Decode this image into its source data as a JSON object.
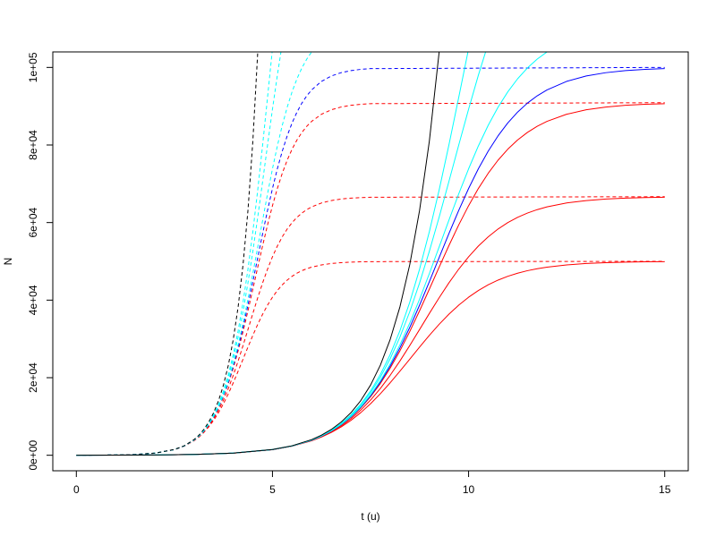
{
  "chart_data": {
    "type": "line",
    "xlabel": "t (u)",
    "ylabel": "N",
    "xlim": [
      -0.6,
      15.6
    ],
    "ylim": [
      -4000,
      104000
    ],
    "xticks": [
      0,
      5,
      10,
      15
    ],
    "yticks": [
      {
        "value": 0,
        "label": "0e+00"
      },
      {
        "value": 20000,
        "label": "2e+04"
      },
      {
        "value": 40000,
        "label": "4e+04"
      },
      {
        "value": 60000,
        "label": "6e+04"
      },
      {
        "value": 80000,
        "label": "8e+04"
      },
      {
        "value": 100000,
        "label": "1e+05"
      }
    ],
    "grid": false,
    "series": [
      {
        "color": "#ff0000",
        "linestyle": "dashed",
        "x": [
          0,
          0.5,
          1,
          1.5,
          2,
          2.5,
          2.75,
          3,
          3.125,
          3.25,
          3.375,
          3.5,
          3.625,
          3.75,
          3.875,
          4,
          4.125,
          4.25,
          4.375,
          4.5,
          4.625,
          4.75,
          4.875,
          5,
          5.125,
          5.25,
          5.375,
          5.5,
          5.625,
          5.75,
          5.875,
          6,
          6.25,
          6.5,
          6.75,
          7,
          7.25,
          7.5,
          15
        ],
        "values": [
          10,
          27.2,
          73.8,
          200.1,
          540.1,
          1441.3,
          2332.7,
          3733.1,
          4693.8,
          5870.4,
          7294.6,
          8993.7,
          10987,
          13279,
          15855,
          18676,
          21680,
          24785,
          27897,
          30920,
          33771,
          36383,
          38715,
          40750,
          42488,
          43949,
          45158,
          46146,
          46947,
          47590,
          48103,
          48509,
          49085,
          49441,
          49660,
          49793,
          49874,
          49924,
          50000
        ]
      },
      {
        "color": "#ff0000",
        "linestyle": "dashed",
        "x": [
          0,
          0.5,
          1,
          1.5,
          2,
          2.5,
          2.75,
          3,
          3.125,
          3.25,
          3.375,
          3.5,
          3.625,
          3.75,
          3.875,
          4,
          4.125,
          4.25,
          4.375,
          4.5,
          4.625,
          4.75,
          4.875,
          5,
          5.125,
          5.25,
          5.375,
          5.5,
          5.625,
          5.75,
          5.875,
          6,
          6.25,
          6.5,
          6.75,
          7,
          7.25,
          7.5,
          15
        ],
        "values": [
          10,
          27.2,
          73.8,
          200.3,
          541.6,
          1451.8,
          2360.3,
          3804.1,
          4806.6,
          6048.0,
          7570.7,
          9417.2,
          11625,
          14223,
          17219,
          20599,
          24316,
          28291,
          32419,
          36575,
          40632,
          44474,
          48009,
          51177,
          53950,
          56326,
          58327,
          59987,
          61347,
          62449,
          63336,
          64044,
          65050,
          65677,
          66063,
          66299,
          66443,
          66531,
          66667
        ]
      },
      {
        "color": "#ff0000",
        "linestyle": "dashed",
        "x": [
          0,
          0.5,
          1,
          1.5,
          2,
          2.5,
          2.75,
          3,
          3.125,
          3.25,
          3.375,
          3.5,
          3.625,
          3.75,
          3.875,
          4,
          4.125,
          4.25,
          4.375,
          4.5,
          4.625,
          4.75,
          4.875,
          5,
          5.125,
          5.25,
          5.375,
          5.5,
          5.625,
          5.75,
          5.875,
          6,
          6.25,
          6.5,
          6.75,
          7,
          7.25,
          7.5,
          15
        ],
        "values": [
          10,
          27.2,
          73.8,
          200.5,
          542.7,
          1460.3,
          2382.8,
          3862.9,
          4900.8,
          6197.9,
          7807.2,
          9785.8,
          12192,
          15081,
          18493,
          22449,
          26935,
          31901,
          37249,
          42843,
          48517,
          54097,
          59419,
          64350,
          68796,
          72708,
          76077,
          78926,
          81296,
          83243,
          84827,
          86100,
          87930,
          89078,
          89790,
          90227,
          90494,
          90657,
          90909
        ]
      },
      {
        "color": "#0000ff",
        "linestyle": "dashed",
        "x": [
          0,
          0.5,
          1,
          1.5,
          2,
          2.5,
          2.75,
          3,
          3.125,
          3.25,
          3.375,
          3.5,
          3.625,
          3.75,
          3.875,
          4,
          4.125,
          4.25,
          4.375,
          4.5,
          4.625,
          4.75,
          4.875,
          5,
          5.125,
          5.25,
          5.375,
          5.5,
          5.625,
          5.75,
          5.875,
          6,
          6.25,
          6.5,
          6.75,
          7,
          7.25,
          7.5,
          15
        ],
        "values": [
          10,
          27.2,
          73.8,
          200.5,
          543.0,
          1462.4,
          2388.5,
          3877.9,
          4925.0,
          6236.6,
          7868.6,
          9882.5,
          12343,
          15312,
          18842,
          22964,
          27681,
          32952,
          38690,
          44761,
          50991,
          57191,
          63173,
          68776,
          73879,
          78409,
          82341,
          85688,
          88490,
          90802,
          92688,
          94211,
          96407,
          97790,
          98648,
          99174,
          99498,
          99694,
          100000
        ]
      },
      {
        "color": "#00ffff",
        "linestyle": "dashed",
        "x": [
          0,
          0.5,
          1,
          1.5,
          2,
          2.5,
          2.75,
          3,
          3.125,
          3.25,
          3.375,
          3.5,
          3.625,
          3.75,
          3.875,
          4,
          4.125,
          4.25,
          4.375,
          4.5,
          4.625,
          4.75,
          4.875,
          5,
          5.125,
          5.25,
          5.375,
          5.5,
          5.625,
          5.75,
          5.875,
          6,
          6.25
        ],
        "values": [
          10,
          27.2,
          73.8,
          200.5,
          543.3,
          1464.5,
          2394.2,
          3892.9,
          4949.4,
          6275.7,
          7931.0,
          9981.2,
          12497,
          15550,
          19204,
          23504,
          28469,
          34075,
          40247,
          46858,
          53731,
          60661,
          67433,
          73855,
          79772,
          85080,
          89730,
          93718,
          97080,
          99870,
          102157,
          104010,
          106694
        ]
      },
      {
        "color": "#00ffff",
        "linestyle": "dashed",
        "x": [
          0,
          0.5,
          1,
          1.5,
          2,
          2.5,
          2.75,
          3,
          3.125,
          3.25,
          3.375,
          3.5,
          3.625,
          3.75,
          3.875,
          4,
          4.125,
          4.25,
          4.375,
          4.5,
          4.625,
          4.75,
          4.875,
          5,
          5.125,
          5.25
        ],
        "values": [
          10,
          27.2,
          73.9,
          200.6,
          544.0,
          1469.6,
          2407.6,
          3928.6,
          5007.2,
          6369.0,
          8080.5,
          10219,
          12873,
          16136,
          20104,
          24868,
          30495,
          37019,
          44419,
          52610,
          61433,
          70662,
          80025,
          89233,
          98017,
          106154
        ]
      },
      {
        "color": "#00ffff",
        "linestyle": "dashed",
        "x": [
          0,
          0.5,
          1,
          1.5,
          2,
          2.5,
          2.75,
          3,
          3.125,
          3.25,
          3.375,
          3.5,
          3.625,
          3.75,
          3.875,
          4,
          4.125,
          4.25,
          4.375,
          4.5,
          4.625,
          4.75,
          4.875,
          5
        ],
        "values": [
          10,
          27.2,
          73.9,
          200.7,
          544.5,
          1473.2,
          2417.3,
          3954.5,
          5049.3,
          6437.3,
          8190.8,
          10396,
          13155,
          16581,
          20801,
          25943,
          32127,
          39453,
          47970,
          57667,
          68442,
          80095,
          92340,
          104821
        ]
      },
      {
        "color": "#000000",
        "linestyle": "dashed",
        "x": [
          0,
          0.5,
          1,
          1.5,
          2,
          2.5,
          2.75,
          3,
          3.125,
          3.25,
          3.375,
          3.5,
          3.625,
          3.75,
          3.875,
          4,
          4.125,
          4.25,
          4.375,
          4.5,
          4.625,
          4.75
        ],
        "values": [
          10,
          27.2,
          73.9,
          200.9,
          546,
          1484.1,
          2446.9,
          4034.3,
          5180.1,
          6651.4,
          8540.6,
          10966.3,
          14081,
          18080.4,
          23216,
          29810,
          38276,
          49148,
          63107,
          81031,
          104046,
          133597
        ]
      },
      {
        "color": "#ff0000",
        "linestyle": "solid",
        "x": [
          0,
          1,
          2,
          3,
          4,
          5,
          5.5,
          6,
          6.25,
          6.5,
          6.75,
          7,
          7.25,
          7.5,
          7.75,
          8,
          8.25,
          8.5,
          8.75,
          9,
          9.25,
          9.5,
          9.75,
          10,
          10.25,
          10.5,
          10.75,
          11,
          11.25,
          11.5,
          11.75,
          12,
          12.5,
          13,
          13.5,
          14,
          14.5,
          15
        ],
        "values": [
          10,
          27.2,
          73.8,
          200.1,
          540.1,
          1441.3,
          2332.7,
          3733.1,
          4693.8,
          5870.4,
          7294.6,
          8993.7,
          10987,
          13279,
          15855,
          18676,
          21680,
          24785,
          27897,
          30920,
          33771,
          36383,
          38715,
          40750,
          42488,
          43949,
          45158,
          46146,
          46947,
          47590,
          48103,
          48509,
          49085,
          49441,
          49660,
          49793,
          49874,
          49924
        ]
      },
      {
        "color": "#ff0000",
        "linestyle": "solid",
        "x": [
          0,
          1,
          2,
          3,
          4,
          5,
          5.5,
          6,
          6.25,
          6.5,
          6.75,
          7,
          7.25,
          7.5,
          7.75,
          8,
          8.25,
          8.5,
          8.75,
          9,
          9.25,
          9.5,
          9.75,
          10,
          10.25,
          10.5,
          10.75,
          11,
          11.25,
          11.5,
          11.75,
          12,
          12.5,
          13,
          13.5,
          14,
          14.5,
          15
        ],
        "values": [
          10,
          27.2,
          73.8,
          200.3,
          541.6,
          1451.8,
          2360.3,
          3804.1,
          4806.6,
          6048.0,
          7570.7,
          9417.2,
          11625,
          14223,
          17219,
          20599,
          24316,
          28291,
          32419,
          36575,
          40632,
          44474,
          48009,
          51177,
          53950,
          56326,
          58327,
          59987,
          61347,
          62449,
          63336,
          64044,
          65050,
          65677,
          66063,
          66299,
          66443,
          66531
        ]
      },
      {
        "color": "#ff0000",
        "linestyle": "solid",
        "x": [
          0,
          1,
          2,
          3,
          4,
          5,
          5.5,
          6,
          6.25,
          6.5,
          6.75,
          7,
          7.25,
          7.5,
          7.75,
          8,
          8.25,
          8.5,
          8.75,
          9,
          9.25,
          9.5,
          9.75,
          10,
          10.25,
          10.5,
          10.75,
          11,
          11.25,
          11.5,
          11.75,
          12,
          12.5,
          13,
          13.5,
          14,
          14.5,
          15
        ],
        "values": [
          10,
          27.2,
          73.8,
          200.5,
          542.7,
          1460.3,
          2382.8,
          3862.9,
          4900.8,
          6197.9,
          7807.2,
          9785.8,
          12192,
          15081,
          18493,
          22449,
          26935,
          31901,
          37249,
          42843,
          48517,
          54097,
          59419,
          64350,
          68796,
          72708,
          76077,
          78926,
          81296,
          83243,
          84827,
          86100,
          87930,
          89078,
          89790,
          90227,
          90494,
          90657
        ]
      },
      {
        "color": "#0000ff",
        "linestyle": "solid",
        "x": [
          0,
          1,
          2,
          3,
          4,
          5,
          5.5,
          6,
          6.25,
          6.5,
          6.75,
          7,
          7.25,
          7.5,
          7.75,
          8,
          8.25,
          8.5,
          8.75,
          9,
          9.25,
          9.5,
          9.75,
          10,
          10.25,
          10.5,
          10.75,
          11,
          11.25,
          11.5,
          11.75,
          12,
          12.5,
          13,
          13.5,
          14,
          14.5,
          15
        ],
        "values": [
          10,
          27.2,
          73.8,
          200.5,
          543.0,
          1462.4,
          2388.5,
          3877.9,
          4925.0,
          6236.6,
          7868.6,
          9882.5,
          12343,
          15312,
          18842,
          22964,
          27681,
          32952,
          38690,
          44761,
          50991,
          57191,
          63173,
          68776,
          73879,
          78409,
          82341,
          85688,
          88490,
          90802,
          92688,
          94211,
          96407,
          97790,
          98648,
          99174,
          99498,
          99694
        ]
      },
      {
        "color": "#00ffff",
        "linestyle": "solid",
        "x": [
          0,
          1,
          2,
          3,
          4,
          5,
          5.5,
          6,
          6.25,
          6.5,
          6.75,
          7,
          7.25,
          7.5,
          7.75,
          8,
          8.25,
          8.5,
          8.75,
          9,
          9.25,
          9.5,
          9.75,
          10,
          10.25,
          10.5,
          10.75,
          11,
          11.25,
          11.5,
          11.75,
          12,
          12.5
        ],
        "values": [
          10,
          27.2,
          73.8,
          200.5,
          543.3,
          1464.5,
          2394.2,
          3892.9,
          4949.4,
          6275.7,
          7931.0,
          9981.2,
          12497,
          15550,
          19204,
          23504,
          28469,
          34075,
          40247,
          46858,
          53731,
          60661,
          67433,
          73855,
          79772,
          85080,
          89730,
          93718,
          97080,
          99870,
          102157,
          104010,
          106694
        ]
      },
      {
        "color": "#00ffff",
        "linestyle": "solid",
        "x": [
          0,
          1,
          2,
          3,
          4,
          5,
          5.5,
          6,
          6.25,
          6.5,
          6.75,
          7,
          7.25,
          7.5,
          7.75,
          8,
          8.25,
          8.5,
          8.75,
          9,
          9.25,
          9.5,
          9.75,
          10,
          10.25,
          10.5
        ],
        "values": [
          10,
          27.2,
          73.9,
          200.6,
          544.0,
          1469.6,
          2407.6,
          3928.6,
          5007.2,
          6369.0,
          8080.5,
          10219,
          12873,
          16136,
          20104,
          24868,
          30495,
          37019,
          44419,
          52610,
          61433,
          70662,
          80025,
          89233,
          98017,
          106154
        ]
      },
      {
        "color": "#00ffff",
        "linestyle": "solid",
        "x": [
          0,
          1,
          2,
          3,
          4,
          5,
          5.5,
          6,
          6.25,
          6.5,
          6.75,
          7,
          7.25,
          7.5,
          7.75,
          8,
          8.25,
          8.5,
          8.75,
          9,
          9.25,
          9.5,
          9.75,
          10
        ],
        "values": [
          10,
          27.2,
          73.9,
          200.7,
          544.5,
          1473.2,
          2417.3,
          3954.5,
          5049.3,
          6437.3,
          8190.8,
          10396,
          13155,
          16581,
          20801,
          25943,
          32127,
          39453,
          47970,
          57667,
          68442,
          80095,
          92340,
          104821
        ]
      },
      {
        "color": "#000000",
        "linestyle": "solid",
        "x": [
          0,
          1,
          2,
          3,
          4,
          5,
          5.5,
          6,
          6.25,
          6.5,
          6.75,
          7,
          7.25,
          7.5,
          7.75,
          8,
          8.25,
          8.5,
          8.75,
          9,
          9.25,
          9.5
        ],
        "values": [
          10,
          27.2,
          73.9,
          200.9,
          546,
          1484.1,
          2446.9,
          4034.3,
          5180.1,
          6651.4,
          8540.6,
          10966.3,
          14081,
          18080.4,
          23216,
          29810,
          38276,
          49148,
          63107,
          81031,
          104046,
          133597
        ]
      }
    ]
  }
}
